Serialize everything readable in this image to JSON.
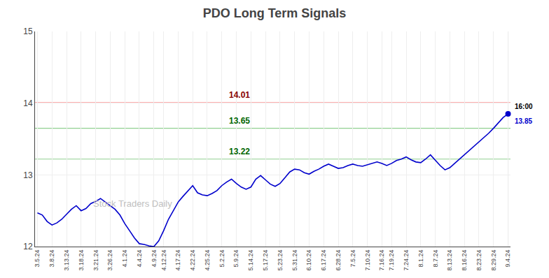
{
  "chart_data": {
    "type": "line",
    "title": "PDO Long Term Signals",
    "categories": [
      "3.5.24",
      null,
      null,
      "3.8.24",
      null,
      null,
      "3.13.24",
      null,
      null,
      "3.18.24",
      null,
      null,
      "3.21.24",
      null,
      null,
      "3.26.24",
      null,
      null,
      "4.1.24",
      null,
      null,
      "4.4.24",
      null,
      null,
      "4.9.24",
      null,
      "4.12.24",
      null,
      null,
      "4.17.24",
      null,
      null,
      "4.22.24",
      null,
      null,
      "4.25.24",
      null,
      null,
      "5.2.24",
      null,
      null,
      "5.9.24",
      null,
      null,
      "5.14.24",
      null,
      null,
      "5.17.24",
      null,
      null,
      "5.23.24",
      null,
      null,
      "5.31.24",
      null,
      null,
      "6.10.24",
      null,
      null,
      "6.17.24",
      null,
      null,
      "6.28.24",
      null,
      null,
      "7.5.24",
      null,
      null,
      "7.10.24",
      null,
      null,
      "7.16.24",
      null,
      "7.19.24",
      null,
      null,
      "7.24.24",
      null,
      null,
      "8.1.24",
      null,
      null,
      "8.7.24",
      null,
      null,
      "8.13.24",
      null,
      null,
      "8.16.24",
      null,
      null,
      "8.23.24",
      null,
      null,
      "8.29.24",
      null,
      null,
      "9.4.24"
    ],
    "values": [
      12.47,
      12.44,
      12.35,
      12.3,
      12.33,
      12.38,
      12.45,
      12.52,
      12.57,
      12.5,
      12.53,
      12.6,
      12.63,
      12.67,
      12.62,
      12.57,
      12.52,
      12.44,
      12.32,
      12.22,
      12.12,
      12.04,
      12.03,
      12.01,
      12.0,
      12.08,
      12.22,
      12.38,
      12.5,
      12.62,
      12.7,
      12.78,
      12.85,
      12.75,
      12.72,
      12.71,
      12.74,
      12.78,
      12.85,
      12.9,
      12.94,
      12.88,
      12.83,
      12.8,
      12.83,
      12.94,
      12.99,
      12.93,
      12.87,
      12.84,
      12.88,
      12.96,
      13.04,
      13.08,
      13.07,
      13.03,
      13.01,
      13.05,
      13.08,
      13.12,
      13.15,
      13.12,
      13.09,
      13.1,
      13.13,
      13.15,
      13.13,
      13.12,
      13.14,
      13.16,
      13.18,
      13.16,
      13.13,
      13.16,
      13.2,
      13.22,
      13.25,
      13.21,
      13.18,
      13.17,
      13.22,
      13.28,
      13.2,
      13.13,
      13.07,
      13.1,
      13.16,
      13.22,
      13.28,
      13.34,
      13.4,
      13.46,
      13.52,
      13.58,
      13.65,
      13.73,
      13.8,
      13.85
    ],
    "color": "#0000cc",
    "ylim": [
      12,
      15
    ],
    "yticks": [
      12,
      13,
      14,
      15
    ],
    "grid": true,
    "reference_lines": [
      {
        "y": 14.01,
        "label": "14.01",
        "color": "#ffb0b0",
        "label_color": "#880000"
      },
      {
        "y": 13.65,
        "label": "13.65",
        "color": "#90d090",
        "label_color": "#006600"
      },
      {
        "y": 13.22,
        "label": "13.22",
        "color": "#90d090",
        "label_color": "#006600"
      }
    ],
    "last_point": {
      "label": "16:00",
      "label_color": "#000000",
      "value_label": "13.85",
      "value_color": "#0000cc",
      "marker_color": "#0000cc"
    },
    "watermark": {
      "text": "Stock Traders Daily",
      "color": "#c0c0c0"
    }
  }
}
